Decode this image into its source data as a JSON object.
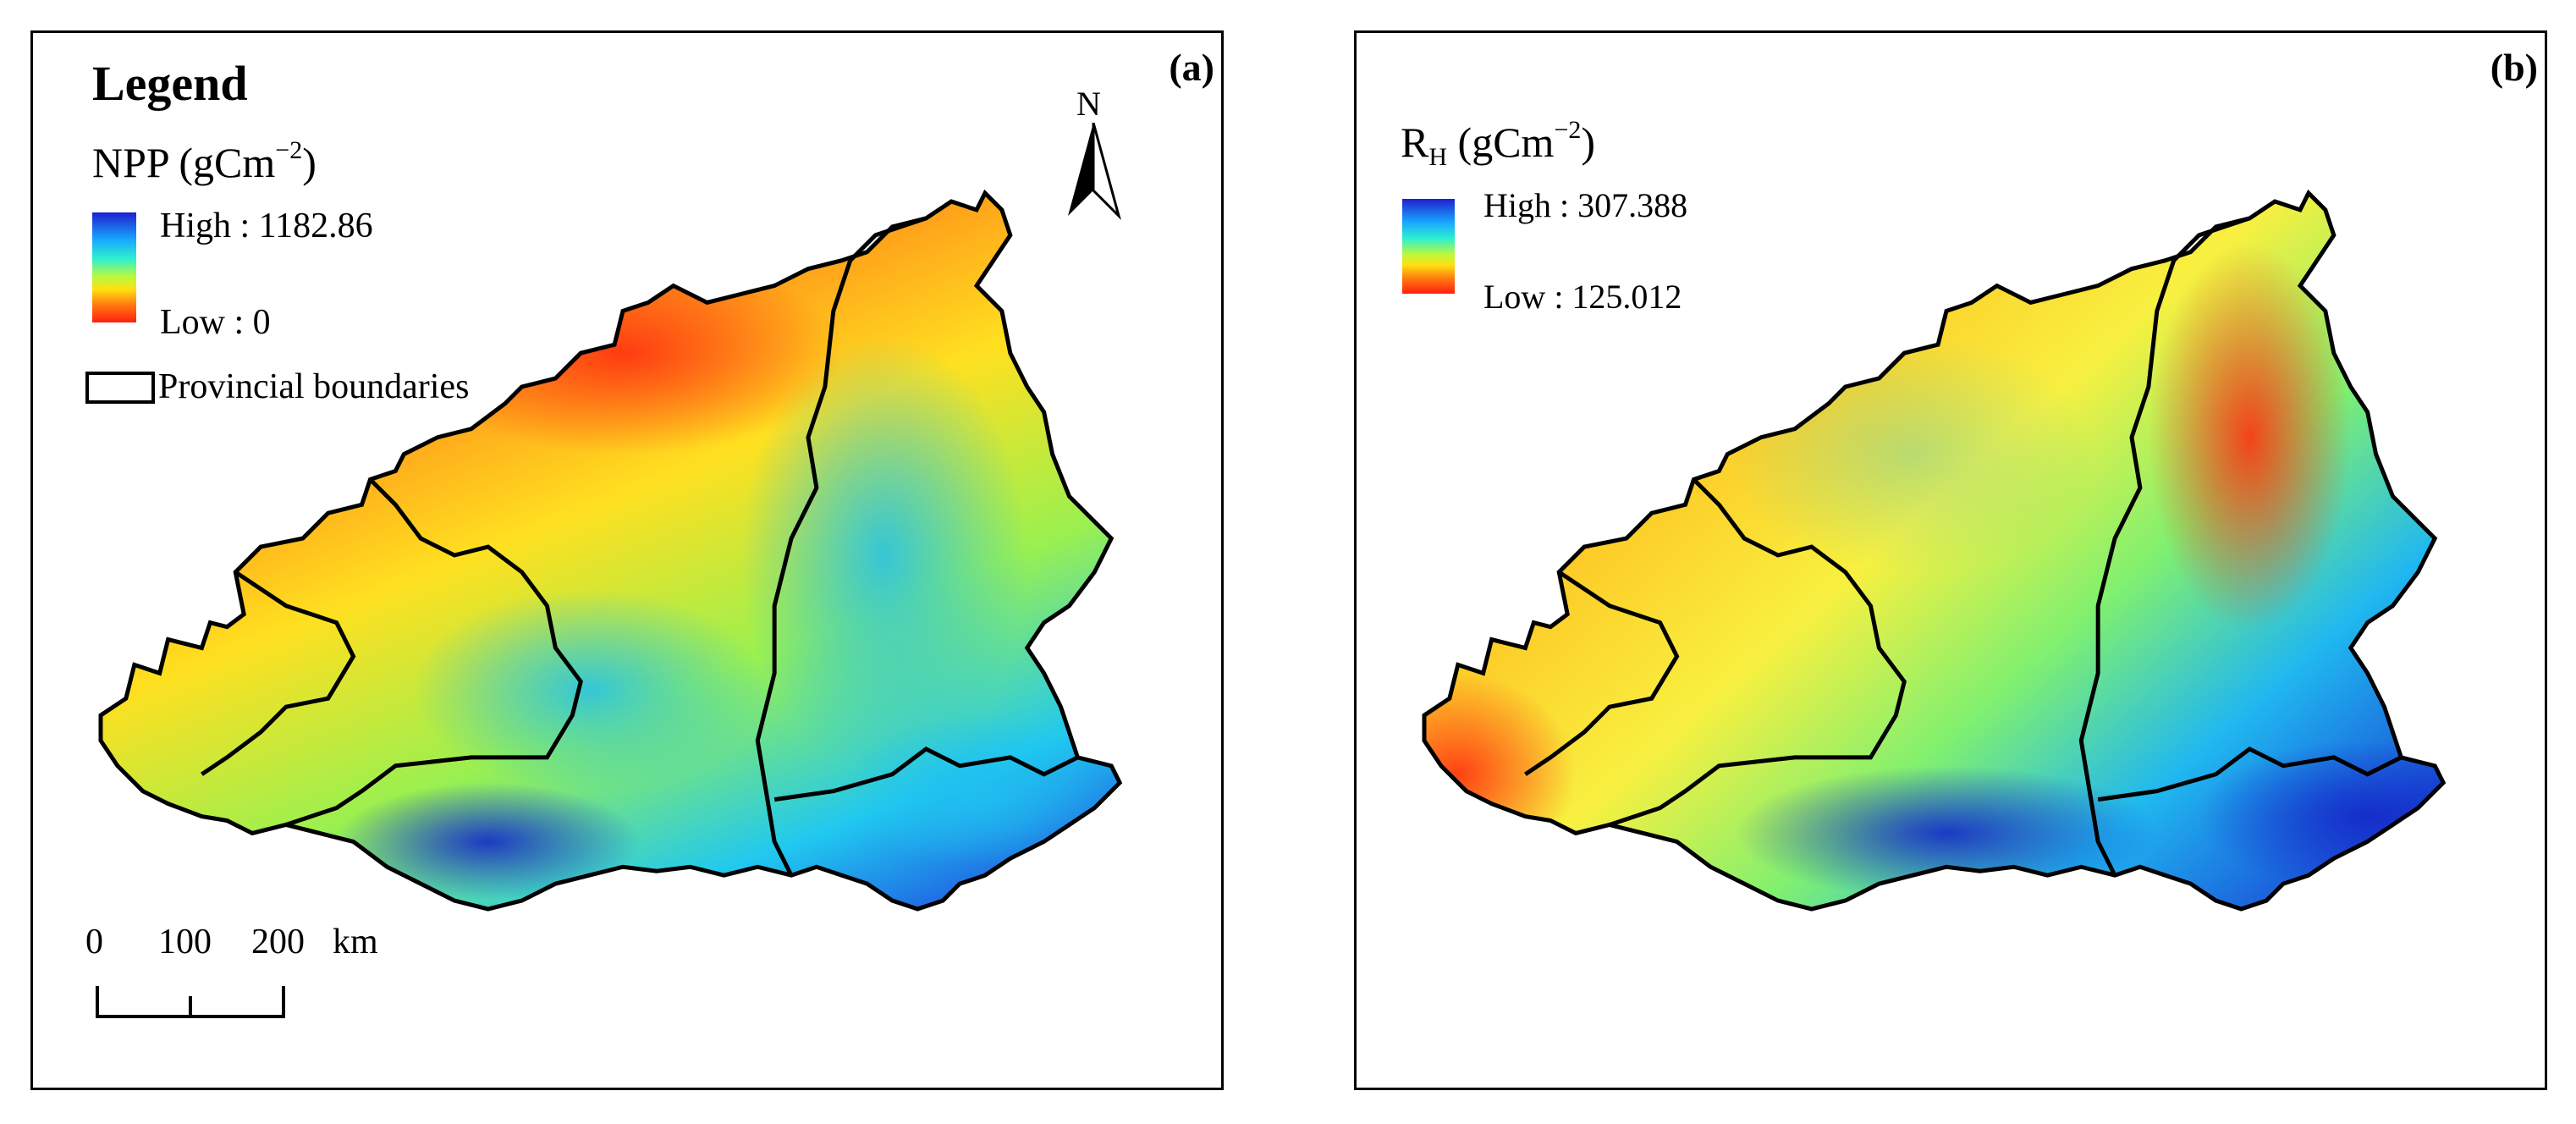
{
  "panel_a": {
    "label": "(a)",
    "legend_title": "Legend",
    "variable": {
      "name": "NPP",
      "unit": "gCm",
      "exponent": "−2"
    },
    "high_label": "High : 1182.86",
    "low_label": "Low : 0",
    "boundary_label": "Provincial boundaries",
    "north_label": "N",
    "scale": {
      "ticks": [
        "0",
        "100",
        "200"
      ],
      "unit": "km"
    }
  },
  "panel_b": {
    "label": "(b)",
    "variable": {
      "name": "R",
      "subscript": "H",
      "unit": "gCm",
      "exponent": "−2"
    },
    "high_label": "High : 307.388",
    "low_label": "Low : 125.012"
  },
  "colors": {
    "high": "#1f1fcf",
    "mid": "#2ef0d0",
    "low": "#ff1f10",
    "boundary": "#000000"
  }
}
